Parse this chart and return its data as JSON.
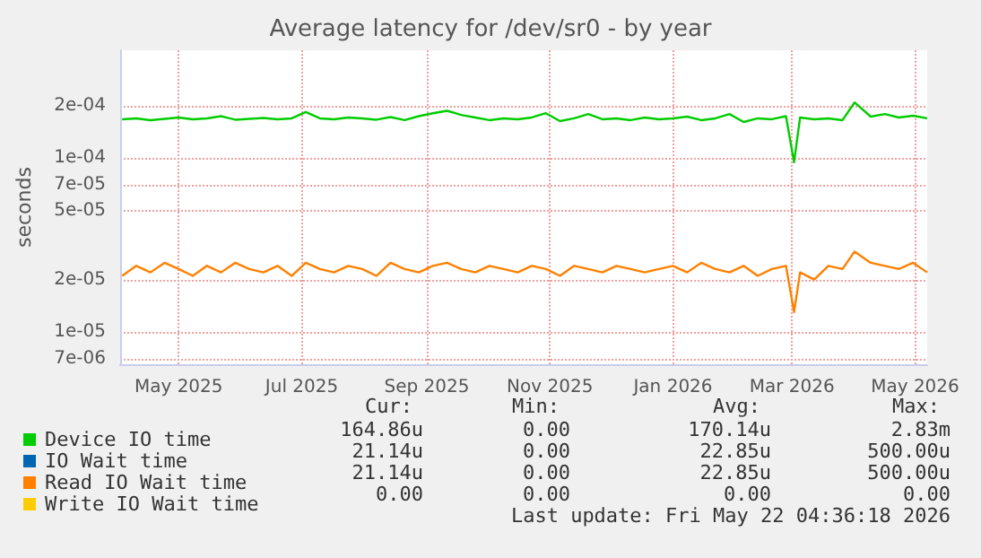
{
  "chart_data": {
    "type": "line",
    "title": "Average latency for /dev/sr0 - by year",
    "ylabel": "seconds",
    "log": "y",
    "grid": true,
    "legend": "bottom left",
    "marker": "none",
    "line_style": "solid",
    "x": [
      "2025-04-03",
      "2025-04-10",
      "2025-04-17",
      "2025-04-24",
      "2025-05-01",
      "2025-05-08",
      "2025-05-15",
      "2025-05-22",
      "2025-05-29",
      "2025-06-05",
      "2025-06-12",
      "2025-06-19",
      "2025-06-26",
      "2025-07-03",
      "2025-07-10",
      "2025-07-17",
      "2025-07-24",
      "2025-07-31",
      "2025-08-07",
      "2025-08-14",
      "2025-08-21",
      "2025-08-28",
      "2025-09-04",
      "2025-09-11",
      "2025-09-18",
      "2025-09-25",
      "2025-10-02",
      "2025-10-09",
      "2025-10-16",
      "2025-10-23",
      "2025-10-30",
      "2025-11-06",
      "2025-11-13",
      "2025-11-20",
      "2025-11-27",
      "2025-12-04",
      "2025-12-11",
      "2025-12-18",
      "2025-12-25",
      "2026-01-01",
      "2026-01-08",
      "2026-01-15",
      "2026-01-22",
      "2026-01-29",
      "2026-02-05",
      "2026-02-12",
      "2026-02-19",
      "2026-02-26",
      "2026-03-02",
      "2026-03-05",
      "2026-03-12",
      "2026-03-19",
      "2026-03-26",
      "2026-04-01",
      "2026-04-09",
      "2026-04-16",
      "2026-04-23",
      "2026-04-30",
      "2026-05-07"
    ],
    "xlim": [
      "2025-04-02",
      "2026-05-07"
    ],
    "xticks": [
      {
        "value": "2025-05-01",
        "label": "May 2025"
      },
      {
        "value": "2025-07-01",
        "label": "Jul 2025"
      },
      {
        "value": "2025-09-01",
        "label": "Sep 2025"
      },
      {
        "value": "2025-11-01",
        "label": "Nov 2025"
      },
      {
        "value": "2026-01-01",
        "label": "Jan 2026"
      },
      {
        "value": "2026-03-01",
        "label": "Mar 2026"
      },
      {
        "value": "2026-05-01",
        "label": "May 2026"
      }
    ],
    "ylim": [
      6.5e-06,
      0.00042
    ],
    "yticks": [
      {
        "value": 7e-06,
        "label": "7e-06"
      },
      {
        "value": 1e-05,
        "label": "1e-05"
      },
      {
        "value": 2e-05,
        "label": "2e-05"
      },
      {
        "value": 5e-05,
        "label": "5e-05"
      },
      {
        "value": 7e-05,
        "label": "7e-05"
      },
      {
        "value": 0.0001,
        "label": "1e-04"
      },
      {
        "value": 0.0002,
        "label": "2e-04"
      }
    ],
    "series": [
      {
        "name": "Device IO time",
        "color": "#00cc00",
        "values": [
          0.000168,
          0.00017,
          0.000166,
          0.000169,
          0.000172,
          0.000168,
          0.00017,
          0.000175,
          0.000167,
          0.000169,
          0.000171,
          0.000168,
          0.00017,
          0.000185,
          0.00017,
          0.000168,
          0.000172,
          0.00017,
          0.000167,
          0.000173,
          0.000166,
          0.000175,
          0.000182,
          0.000188,
          0.000178,
          0.000172,
          0.000166,
          0.00017,
          0.000168,
          0.000172,
          0.000182,
          0.000164,
          0.00017,
          0.00018,
          0.000168,
          0.00017,
          0.000166,
          0.000172,
          0.000168,
          0.00017,
          0.000174,
          0.000166,
          0.00017,
          0.00018,
          0.000162,
          0.00017,
          0.000168,
          0.000175,
          9.5e-05,
          0.000172,
          0.000168,
          0.00017,
          0.000166,
          0.00021,
          0.000174,
          0.00018,
          0.000172,
          0.000176,
          0.00017
        ]
      },
      {
        "name": "IO Wait time",
        "color": "#0066b3",
        "values": [
          null,
          null,
          null,
          null,
          null,
          null,
          null,
          null,
          null,
          null,
          null,
          null,
          null,
          null,
          null,
          null,
          null,
          null,
          null,
          null,
          null,
          null,
          null,
          null,
          null,
          null,
          null,
          null,
          null,
          null,
          null,
          null,
          null,
          null,
          null,
          null,
          null,
          null,
          null,
          null,
          null,
          null,
          null,
          null,
          null,
          null,
          null,
          null,
          null,
          null,
          null,
          null,
          null,
          null,
          null,
          null,
          null,
          null,
          null
        ]
      },
      {
        "name": "Read IO Wait time",
        "color": "#ff8000",
        "values": [
          2.1e-05,
          2.4e-05,
          2.2e-05,
          2.5e-05,
          2.3e-05,
          2.1e-05,
          2.4e-05,
          2.2e-05,
          2.5e-05,
          2.3e-05,
          2.2e-05,
          2.4e-05,
          2.1e-05,
          2.5e-05,
          2.3e-05,
          2.2e-05,
          2.4e-05,
          2.3e-05,
          2.1e-05,
          2.5e-05,
          2.3e-05,
          2.2e-05,
          2.4e-05,
          2.5e-05,
          2.3e-05,
          2.2e-05,
          2.4e-05,
          2.3e-05,
          2.2e-05,
          2.4e-05,
          2.3e-05,
          2.1e-05,
          2.4e-05,
          2.3e-05,
          2.2e-05,
          2.4e-05,
          2.3e-05,
          2.2e-05,
          2.3e-05,
          2.4e-05,
          2.2e-05,
          2.5e-05,
          2.3e-05,
          2.2e-05,
          2.4e-05,
          2.1e-05,
          2.3e-05,
          2.4e-05,
          1.3e-05,
          2.2e-05,
          2e-05,
          2.4e-05,
          2.3e-05,
          2.9e-05,
          2.5e-05,
          2.4e-05,
          2.3e-05,
          2.5e-05,
          2.2e-05
        ]
      },
      {
        "name": "Write IO Wait time",
        "color": "#ffcc00",
        "values": [
          null,
          null,
          null,
          null,
          null,
          null,
          null,
          null,
          null,
          null,
          null,
          null,
          null,
          null,
          null,
          null,
          null,
          null,
          null,
          null,
          null,
          null,
          null,
          null,
          null,
          null,
          null,
          null,
          null,
          null,
          null,
          null,
          null,
          null,
          null,
          null,
          null,
          null,
          null,
          null,
          null,
          null,
          null,
          null,
          null,
          null,
          null,
          null,
          null,
          null,
          null,
          null,
          null,
          null,
          null,
          null,
          null,
          null,
          null
        ]
      }
    ],
    "annotations": [
      "Cur:",
      "Min:",
      "Avg:",
      "Max:",
      "164.86u",
      "0.00",
      "170.14u",
      "2.83m",
      "21.14u",
      "0.00",
      "22.85u",
      "500.00u",
      "21.14u",
      "0.00",
      "22.85u",
      "500.00u",
      "0.00",
      "0.00",
      "0.00",
      "0.00",
      "Last update: Fri May 22 04:36:18 2026"
    ]
  }
}
